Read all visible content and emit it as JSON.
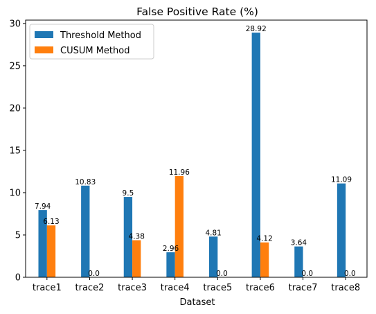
{
  "chart_data": {
    "type": "bar",
    "title": "False Positive Rate (%)",
    "xlabel": "Dataset",
    "ylabel": "",
    "categories": [
      "trace1",
      "trace2",
      "trace3",
      "trace4",
      "trace5",
      "trace6",
      "trace7",
      "trace8"
    ],
    "series": [
      {
        "name": "Threshold Method",
        "color": "#1f77b4",
        "values": [
          7.94,
          10.83,
          9.5,
          2.96,
          4.81,
          28.92,
          3.64,
          11.09
        ],
        "labels": [
          "7.94",
          "10.83",
          "9.5",
          "2.96",
          "4.81",
          "28.92",
          "3.64",
          "11.09"
        ]
      },
      {
        "name": "CUSUM Method",
        "color": "#ff7f0e",
        "values": [
          6.13,
          0.0,
          4.38,
          11.96,
          0.0,
          4.12,
          0.0,
          0.0
        ],
        "labels": [
          "6.13",
          "0.0",
          "4.38",
          "11.96",
          "0.0",
          "4.12",
          "0.0",
          "0.0"
        ]
      }
    ],
    "ylim": [
      0,
      30.4
    ],
    "yticks": [
      0,
      5,
      10,
      15,
      20,
      25,
      30
    ],
    "ytick_labels": [
      "0",
      "5",
      "10",
      "15",
      "20",
      "25",
      "30"
    ],
    "grid": false,
    "legend_position": "upper-left"
  }
}
